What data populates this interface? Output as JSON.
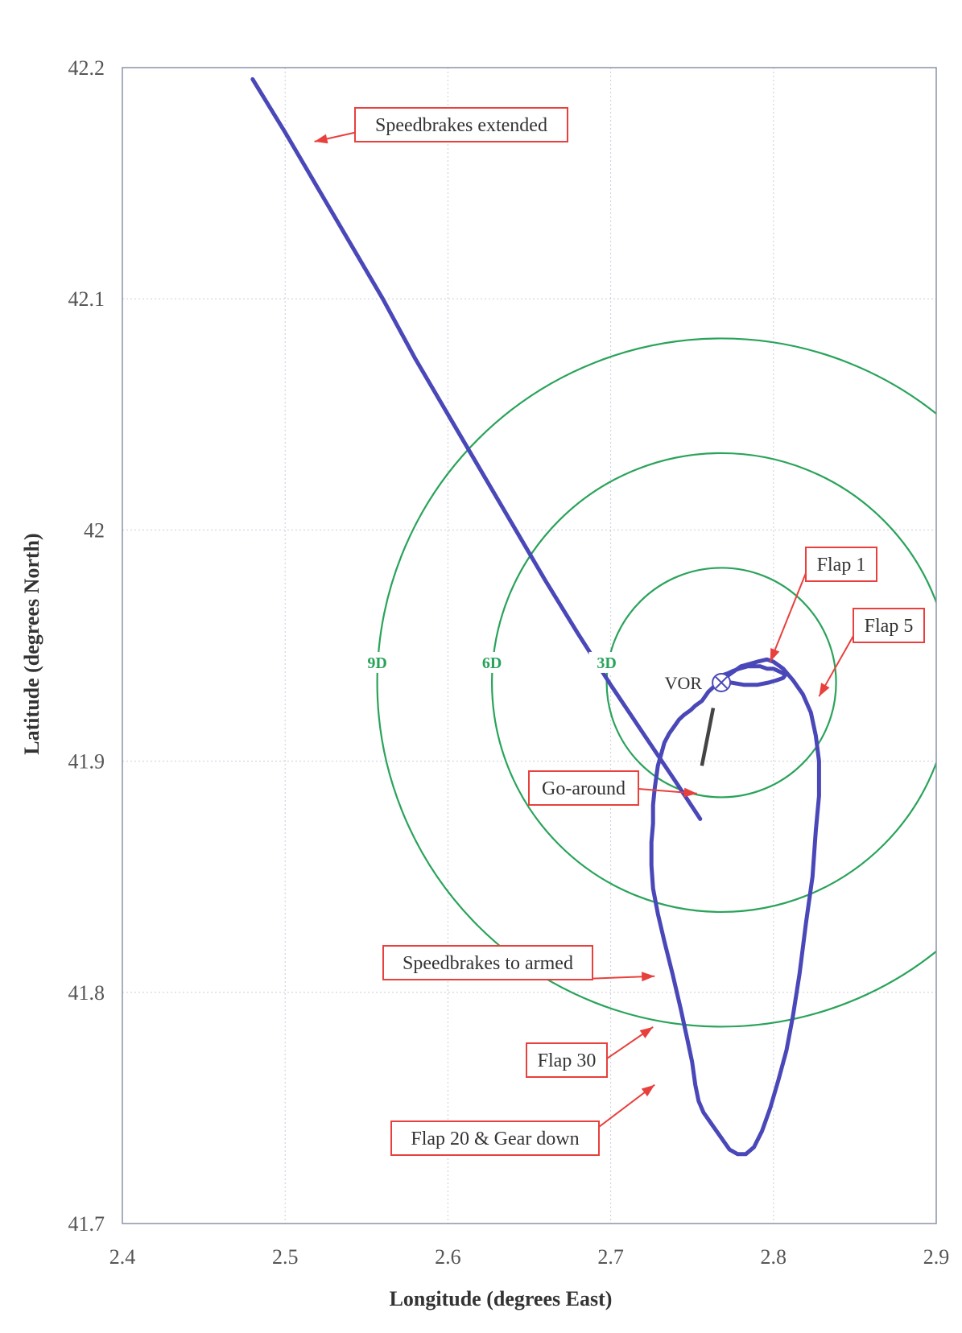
{
  "chart_data": {
    "type": "line",
    "title": "",
    "xlabel": "Longitude (degrees East)",
    "ylabel": "Latitude (degrees North)",
    "xlim": [
      2.4,
      2.9
    ],
    "ylim": [
      41.7,
      42.2
    ],
    "xticks": [
      "2.4",
      "2.5",
      "2.6",
      "2.7",
      "2.8",
      "2.9"
    ],
    "yticks": [
      "41.7",
      "41.8",
      "41.9",
      "42",
      "42.1",
      "42.2"
    ],
    "grid": true,
    "colors": {
      "track": "#4a48b8",
      "rings": "#2aa35a",
      "annotation": "#e8403c",
      "runway": "#444444"
    },
    "vor": {
      "label": "VOR",
      "x": 2.768,
      "y": 41.934
    },
    "range_rings": [
      {
        "label": "3D",
        "center_x": 2.768,
        "center_y": 41.934,
        "radius_nm": 3
      },
      {
        "label": "6D",
        "center_x": 2.768,
        "center_y": 41.934,
        "radius_nm": 6
      },
      {
        "label": "9D",
        "center_x": 2.768,
        "center_y": 41.934,
        "radius_nm": 9
      }
    ],
    "runway": {
      "x": [
        2.763,
        2.756
      ],
      "y": [
        41.923,
        41.898
      ]
    },
    "track": {
      "x": [
        2.48,
        2.5,
        2.52,
        2.54,
        2.56,
        2.58,
        2.6,
        2.62,
        2.64,
        2.66,
        2.68,
        2.7,
        2.72,
        2.74,
        2.755,
        2.768,
        2.78,
        2.79,
        2.796,
        2.8,
        2.806,
        2.812,
        2.818,
        2.823,
        2.826,
        2.828,
        2.828,
        2.826,
        2.824,
        2.82,
        2.816,
        2.812,
        2.808,
        2.803,
        2.798,
        2.793,
        2.788,
        2.783,
        2.778,
        2.773,
        2.768,
        2.762,
        2.757,
        2.754,
        2.752,
        2.75,
        2.747,
        2.743,
        2.738,
        2.733,
        2.729,
        2.726,
        2.725,
        2.725,
        2.726,
        2.726,
        2.727,
        2.728,
        2.729,
        2.731,
        2.733,
        2.736,
        2.739,
        2.742,
        2.745,
        2.749,
        2.752,
        2.756,
        2.758,
        2.76,
        2.763,
        2.767,
        2.774,
        2.782,
        2.79,
        2.797,
        2.802,
        2.806,
        2.807,
        2.806,
        2.803,
        2.8,
        2.796,
        2.792,
        2.788,
        2.784,
        2.779,
        2.775,
        2.772,
        2.768
      ],
      "y": [
        42.195,
        42.172,
        42.148,
        42.124,
        42.1,
        42.074,
        42.05,
        42.026,
        42.002,
        41.978,
        41.955,
        41.933,
        41.912,
        41.891,
        41.875,
        41.935,
        41.941,
        41.943,
        41.944,
        41.943,
        41.94,
        41.935,
        41.929,
        41.921,
        41.911,
        41.9,
        41.885,
        41.87,
        41.85,
        41.83,
        41.808,
        41.79,
        41.775,
        41.762,
        41.75,
        41.74,
        41.733,
        41.73,
        41.73,
        41.732,
        41.737,
        41.743,
        41.748,
        41.753,
        41.76,
        41.77,
        41.78,
        41.793,
        41.808,
        41.822,
        41.834,
        41.845,
        41.855,
        41.865,
        41.873,
        41.881,
        41.888,
        41.893,
        41.898,
        41.903,
        41.908,
        41.912,
        41.915,
        41.918,
        41.92,
        41.922,
        41.924,
        41.926,
        41.928,
        41.93,
        41.932,
        41.934,
        41.934,
        41.933,
        41.933,
        41.934,
        41.935,
        41.936,
        41.937,
        41.938,
        41.939,
        41.94,
        41.94,
        41.941,
        41.941,
        41.941,
        41.94,
        41.939,
        41.938,
        41.937
      ]
    },
    "annotations": [
      {
        "text": "Speedbrakes extended",
        "x": 2.518,
        "y": 42.168
      },
      {
        "text": "Flap 1",
        "x": 2.798,
        "y": 41.943
      },
      {
        "text": "Flap 5",
        "x": 2.828,
        "y": 41.928
      },
      {
        "text": "Go-around",
        "x": 2.753,
        "y": 41.886
      },
      {
        "text": "Speedbrakes to armed",
        "x": 2.727,
        "y": 41.807
      },
      {
        "text": "Flap 30",
        "x": 2.726,
        "y": 41.785
      },
      {
        "text": "Flap 20 & Gear down",
        "x": 2.727,
        "y": 41.76
      }
    ]
  }
}
